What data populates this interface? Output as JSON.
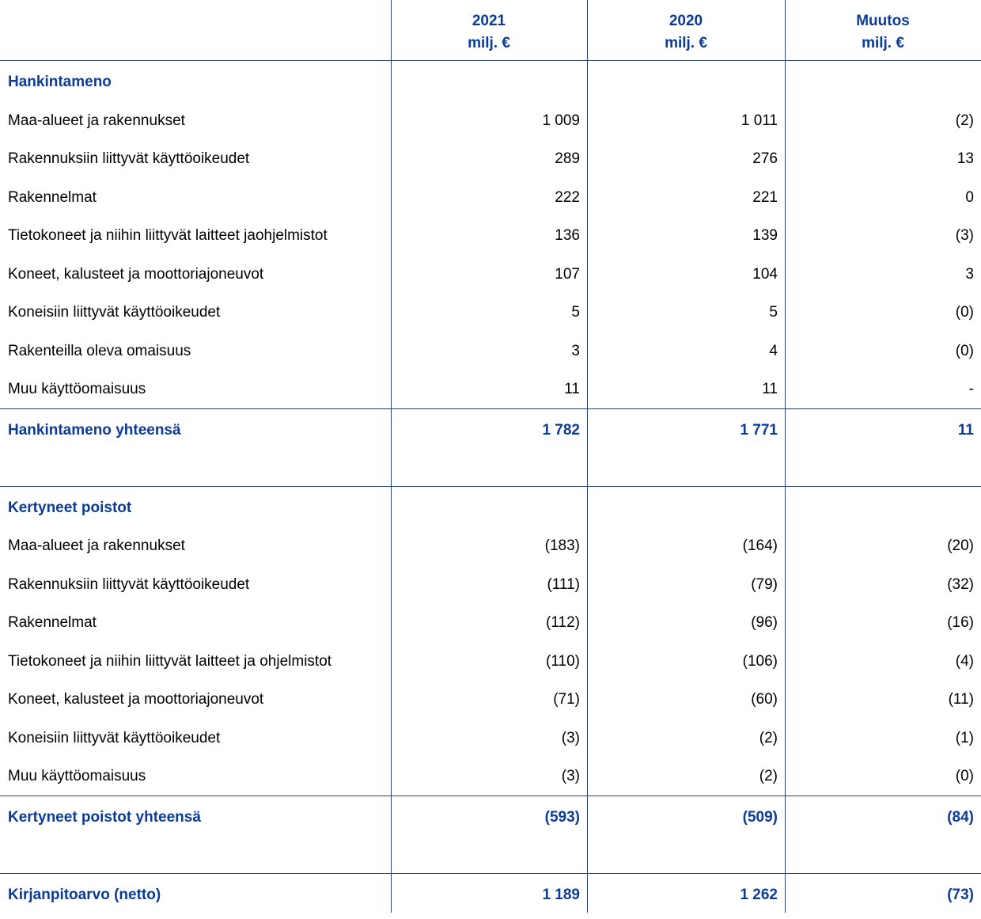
{
  "header": {
    "columns": [
      {
        "year": "2021",
        "unit": "milj. €"
      },
      {
        "year": "2020",
        "unit": "milj. €"
      },
      {
        "year": "Muutos",
        "unit": "milj. €"
      }
    ]
  },
  "sections": [
    {
      "title": "Hankintameno",
      "rows": [
        {
          "label": "Maa-alueet ja rakennukset",
          "values": [
            "1 009",
            "1 011",
            "(2)"
          ]
        },
        {
          "label": "Rakennuksiin liittyvät käyttöoikeudet",
          "values": [
            "289",
            "276",
            "13"
          ]
        },
        {
          "label": "Rakennelmat",
          "values": [
            "222",
            "221",
            "0"
          ]
        },
        {
          "label": "Tietokoneet ja niihin liittyvät laitteet jaohjelmistot",
          "values": [
            "136",
            "139",
            "(3)"
          ]
        },
        {
          "label": "Koneet, kalusteet ja moottoriajoneuvot",
          "values": [
            "107",
            "104",
            "3"
          ]
        },
        {
          "label": "Koneisiin liittyvät käyttöoikeudet",
          "values": [
            "5",
            "5",
            "(0)"
          ]
        },
        {
          "label": "Rakenteilla oleva omaisuus",
          "values": [
            "3",
            "4",
            "(0)"
          ]
        },
        {
          "label": "Muu käyttöomaisuus",
          "values": [
            "11",
            "11",
            "-"
          ]
        }
      ],
      "total": {
        "label": "Hankintameno yhteensä",
        "values": [
          "1 782",
          "1 771",
          "11"
        ]
      }
    },
    {
      "title": "Kertyneet poistot",
      "rows": [
        {
          "label": "Maa-alueet ja rakennukset",
          "values": [
            "(183)",
            "(164)",
            "(20)"
          ]
        },
        {
          "label": "Rakennuksiin liittyvät käyttöoikeudet",
          "values": [
            "(111)",
            "(79)",
            "(32)"
          ]
        },
        {
          "label": "Rakennelmat",
          "values": [
            "(112)",
            "(96)",
            "(16)"
          ]
        },
        {
          "label": "Tietokoneet ja niihin liittyvät laitteet ja ohjelmistot",
          "values": [
            "(110)",
            "(106)",
            "(4)"
          ]
        },
        {
          "label": "Koneet, kalusteet ja moottoriajoneuvot",
          "values": [
            "(71)",
            "(60)",
            "(11)"
          ]
        },
        {
          "label": "Koneisiin liittyvät käyttöoikeudet",
          "values": [
            "(3)",
            "(2)",
            "(1)"
          ]
        },
        {
          "label": "Muu käyttöomaisuus",
          "values": [
            "(3)",
            "(2)",
            "(0)"
          ]
        }
      ],
      "total": {
        "label": "Kertyneet poistot yhteensä",
        "values": [
          "(593)",
          "(509)",
          "(84)"
        ]
      }
    }
  ],
  "net": {
    "label": "Kirjanpitoarvo (netto)",
    "values": [
      "1 189",
      "1 262",
      "(73)"
    ]
  }
}
